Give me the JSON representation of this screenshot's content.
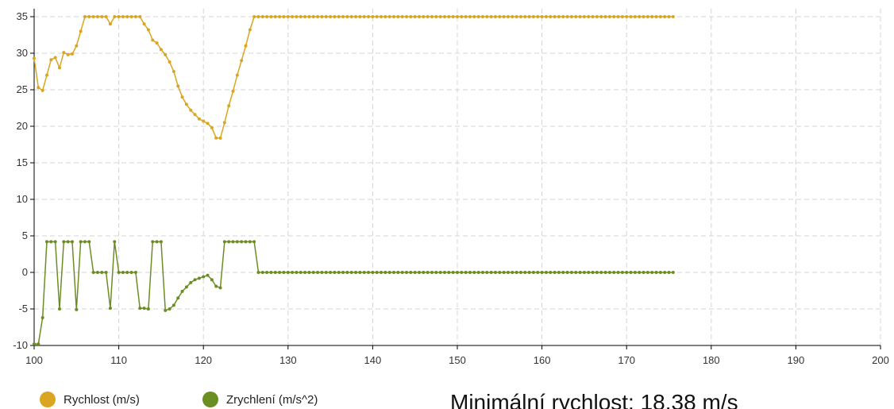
{
  "chart_data": {
    "type": "line",
    "x": [
      100,
      100.5,
      101,
      101.5,
      102,
      102.5,
      103,
      103.5,
      104,
      104.5,
      105,
      105.5,
      106,
      106.5,
      107,
      107.5,
      108,
      108.5,
      109,
      109.5,
      110,
      110.5,
      111,
      111.5,
      112,
      112.5,
      113,
      113.5,
      114,
      114.5,
      115,
      115.5,
      116,
      116.5,
      117,
      117.5,
      118,
      118.5,
      119,
      119.5,
      120,
      120.5,
      121,
      121.5,
      122,
      122.5,
      123,
      123.5,
      124,
      124.5,
      125,
      125.5,
      126,
      126.5,
      127,
      127.5,
      128,
      128.5,
      129,
      129.5,
      130,
      130.5,
      131,
      131.5,
      132,
      132.5,
      133,
      133.5,
      134,
      134.5,
      135,
      135.5,
      136,
      136.5,
      137,
      137.5,
      138,
      138.5,
      139,
      139.5,
      140,
      140.5,
      141,
      141.5,
      142,
      142.5,
      143,
      143.5,
      144,
      144.5,
      145,
      145.5,
      146,
      146.5,
      147,
      147.5,
      148,
      148.5,
      149,
      149.5,
      150,
      150.5,
      151,
      151.5,
      152,
      152.5,
      153,
      153.5,
      154,
      154.5,
      155,
      155.5,
      156,
      156.5,
      157,
      157.5,
      158,
      158.5,
      159,
      159.5,
      160,
      160.5,
      161,
      161.5,
      162,
      162.5,
      163,
      163.5,
      164,
      164.5,
      165,
      165.5,
      166,
      166.5,
      167,
      167.5,
      168,
      168.5,
      169,
      169.5,
      170,
      170.5,
      171,
      171.5,
      172,
      172.5,
      173,
      173.5,
      174,
      174.5,
      175,
      175.5
    ],
    "series": [
      {
        "name": "Rychlost (m/s)",
        "color": "#daa520",
        "values": [
          29.3,
          25.3,
          24.9,
          27,
          29.1,
          29.4,
          28,
          30.1,
          29.8,
          29.9,
          31,
          33,
          35,
          35,
          35,
          35,
          35,
          35,
          34,
          35,
          35,
          35,
          35,
          35,
          35,
          35,
          34,
          33.2,
          31.8,
          31.4,
          30.5,
          29.8,
          28.8,
          27.5,
          25.5,
          24,
          23,
          22.2,
          21.6,
          21,
          20.7,
          20.4,
          19.8,
          18.4,
          18.38,
          20.5,
          22.8,
          24.8,
          27,
          29,
          31,
          33.2,
          35,
          35,
          35,
          35,
          35,
          35,
          35,
          35,
          35,
          35,
          35,
          35,
          35,
          35,
          35,
          35,
          35,
          35,
          35,
          35,
          35,
          35,
          35,
          35,
          35,
          35,
          35,
          35,
          35,
          35,
          35,
          35,
          35,
          35,
          35,
          35,
          35,
          35,
          35,
          35,
          35,
          35,
          35,
          35,
          35,
          35,
          35,
          35,
          35,
          35,
          35,
          35,
          35,
          35,
          35,
          35,
          35,
          35,
          35,
          35,
          35,
          35,
          35,
          35,
          35,
          35,
          35,
          35,
          35,
          35,
          35,
          35,
          35,
          35,
          35,
          35,
          35,
          35,
          35,
          35,
          35,
          35,
          35,
          35,
          35,
          35,
          35,
          35,
          35,
          35,
          35,
          35,
          35,
          35,
          35,
          35,
          35,
          35,
          35,
          35
        ]
      },
      {
        "name": "Zrychlení (m/s^2)",
        "color": "#6b8e23",
        "values": [
          -9.8,
          -9.8,
          -6.2,
          4.2,
          4.2,
          4.2,
          -5,
          4.2,
          4.2,
          4.2,
          -5.1,
          4.2,
          4.2,
          4.2,
          0,
          0,
          0,
          0,
          -4.9,
          4.2,
          0,
          0,
          0,
          0,
          0,
          -4.9,
          -4.9,
          -5,
          4.2,
          4.2,
          4.2,
          -5.2,
          -5,
          -4.5,
          -3.5,
          -2.6,
          -2,
          -1.4,
          -1,
          -0.8,
          -0.6,
          -0.4,
          -1,
          -1.9,
          -2.1,
          4.2,
          4.2,
          4.2,
          4.2,
          4.2,
          4.2,
          4.2,
          4.2,
          0,
          0,
          0,
          0,
          0,
          0,
          0,
          0,
          0,
          0,
          0,
          0,
          0,
          0,
          0,
          0,
          0,
          0,
          0,
          0,
          0,
          0,
          0,
          0,
          0,
          0,
          0,
          0,
          0,
          0,
          0,
          0,
          0,
          0,
          0,
          0,
          0,
          0,
          0,
          0,
          0,
          0,
          0,
          0,
          0,
          0,
          0,
          0,
          0,
          0,
          0,
          0,
          0,
          0,
          0,
          0,
          0,
          0,
          0,
          0,
          0,
          0,
          0,
          0,
          0,
          0,
          0,
          0,
          0,
          0,
          0,
          0,
          0,
          0,
          0,
          0,
          0,
          0,
          0,
          0,
          0,
          0,
          0,
          0,
          0,
          0,
          0,
          0,
          0,
          0,
          0,
          0,
          0,
          0,
          0,
          0,
          0,
          0,
          0
        ]
      }
    ],
    "xlim": [
      100,
      200
    ],
    "xticks": [
      100,
      110,
      120,
      130,
      140,
      150,
      160,
      170,
      180,
      190,
      200
    ],
    "ylim": [
      -10,
      35
    ],
    "yticks": [
      -10,
      -5,
      0,
      5,
      10,
      15,
      20,
      25,
      30,
      35
    ],
    "grid": true,
    "legend": "bottom",
    "annotation": "Minimální rychlost: 18.38 m/s"
  }
}
